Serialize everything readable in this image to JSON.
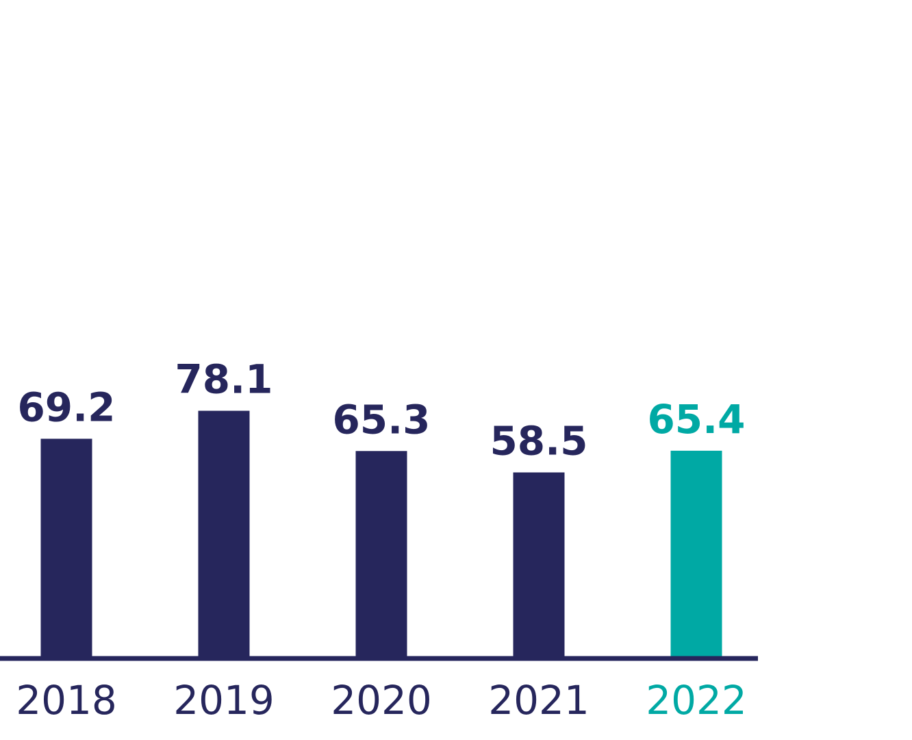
{
  "chart_data": {
    "type": "bar",
    "categories": [
      "2018",
      "2019",
      "2020",
      "2021",
      "2022"
    ],
    "values": [
      69.2,
      78.1,
      65.3,
      58.5,
      65.4
    ],
    "value_labels": [
      "69.2",
      "78.1",
      "65.3",
      "58.5",
      "65.4"
    ],
    "highlight_index": 4,
    "colors": {
      "bar": "#26265c",
      "highlight": "#00a9a4",
      "axis": "#26265c"
    },
    "ylim": [
      0,
      100
    ],
    "grid": false,
    "legend": "none"
  }
}
